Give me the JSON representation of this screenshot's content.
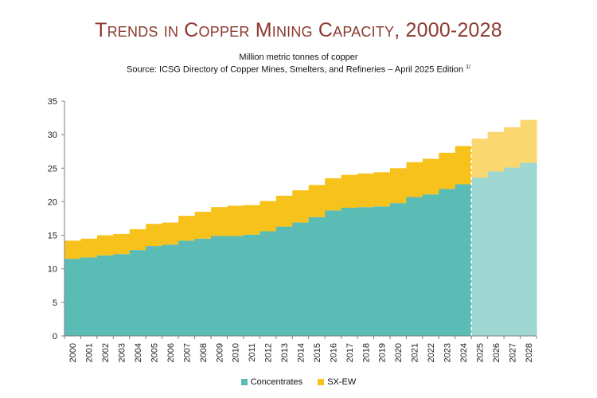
{
  "chart_data": {
    "type": "area",
    "title": "Trends in Copper Mining Capacity, 2000-2028",
    "subtitle": "Million metric tonnes of copper",
    "source": "Source: ICSG Directory of Copper Mines, Smelters, and Refineries – April 2025 Edition",
    "source_note": "1/",
    "categories": [
      "2000",
      "2001",
      "2002",
      "2003",
      "2004",
      "2005",
      "2006",
      "2007",
      "2008",
      "2009",
      "2010",
      "2011",
      "2012",
      "2013",
      "2014",
      "2015",
      "2016",
      "2017",
      "2018",
      "2019",
      "2020",
      "2021",
      "2022",
      "2023",
      "2024",
      "2025",
      "2026",
      "2027",
      "2028"
    ],
    "series": [
      {
        "name": "Concentrates",
        "color": "#5bbcb5",
        "forecast_color": "#9fd8d3",
        "values": [
          11.5,
          11.7,
          12.0,
          12.2,
          12.8,
          13.4,
          13.6,
          14.2,
          14.5,
          14.9,
          14.9,
          15.1,
          15.6,
          16.3,
          16.9,
          17.7,
          18.7,
          19.1,
          19.2,
          19.3,
          19.8,
          20.7,
          21.1,
          21.9,
          22.6,
          23.6,
          24.5,
          25.1,
          25.8
        ]
      },
      {
        "name": "SX-EW",
        "color": "#f7c21b",
        "forecast_color": "#fbd770",
        "values": [
          2.7,
          2.8,
          3.0,
          3.0,
          3.1,
          3.3,
          3.3,
          3.7,
          4.0,
          4.3,
          4.5,
          4.4,
          4.5,
          4.6,
          4.8,
          4.8,
          4.8,
          4.9,
          5.0,
          5.1,
          5.2,
          5.2,
          5.3,
          5.4,
          5.7,
          5.8,
          5.9,
          6.0,
          6.4
        ]
      }
    ],
    "forecast_start": "2025",
    "ylim": [
      0,
      35
    ],
    "yticks": [
      "0",
      "5",
      "10",
      "15",
      "20",
      "25",
      "30",
      "35"
    ],
    "grid": false,
    "legend": "bottom-center"
  }
}
